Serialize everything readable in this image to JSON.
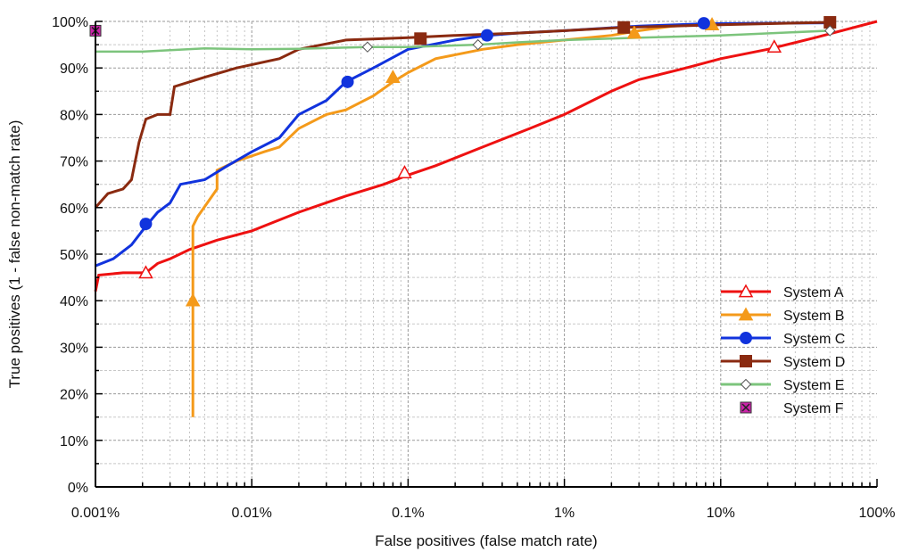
{
  "chart_data": {
    "type": "line",
    "title": "",
    "xlabel": "False positives (false match rate)",
    "ylabel": "True positives (1 - false non-match rate)",
    "xscale": "log",
    "xlim": [
      0.001,
      100
    ],
    "ylim": [
      0,
      100
    ],
    "grid": true,
    "legend_position": "bottom-right",
    "x_ticks": [
      {
        "value": 0.001,
        "label": "0.001%"
      },
      {
        "value": 0.01,
        "label": "0.01%"
      },
      {
        "value": 0.1,
        "label": "0.1%"
      },
      {
        "value": 1,
        "label": "1%"
      },
      {
        "value": 10,
        "label": "10%"
      },
      {
        "value": 100,
        "label": "100%"
      }
    ],
    "y_ticks": [
      {
        "value": 0,
        "label": "0%"
      },
      {
        "value": 10,
        "label": "10%"
      },
      {
        "value": 20,
        "label": "20%"
      },
      {
        "value": 30,
        "label": "30%"
      },
      {
        "value": 40,
        "label": "40%"
      },
      {
        "value": 50,
        "label": "50%"
      },
      {
        "value": 60,
        "label": "60%"
      },
      {
        "value": 70,
        "label": "70%"
      },
      {
        "value": 80,
        "label": "80%"
      },
      {
        "value": 90,
        "label": "90%"
      },
      {
        "value": 100,
        "label": "100%"
      }
    ],
    "series": [
      {
        "name": "System A",
        "color": "#ee1111",
        "marker": "triangle-open",
        "points": [
          [
            0.001,
            42
          ],
          [
            0.00105,
            45.5
          ],
          [
            0.0015,
            46
          ],
          [
            0.0021,
            46
          ],
          [
            0.0025,
            48
          ],
          [
            0.003,
            49
          ],
          [
            0.004,
            51
          ],
          [
            0.006,
            53
          ],
          [
            0.01,
            55
          ],
          [
            0.02,
            59
          ],
          [
            0.04,
            62.5
          ],
          [
            0.07,
            65
          ],
          [
            0.1,
            67
          ],
          [
            0.15,
            69
          ],
          [
            0.3,
            73
          ],
          [
            0.6,
            77
          ],
          [
            1,
            80
          ],
          [
            2,
            85
          ],
          [
            3,
            87.5
          ],
          [
            6,
            90
          ],
          [
            10,
            92
          ],
          [
            20,
            94
          ],
          [
            40,
            96.5
          ],
          [
            100,
            100
          ]
        ],
        "markers": [
          [
            0.0021,
            46
          ],
          [
            0.095,
            67.5
          ],
          [
            22,
            94.5
          ]
        ]
      },
      {
        "name": "System B",
        "color": "#f49a1a",
        "marker": "triangle-filled",
        "points": [
          [
            0.0042,
            15
          ],
          [
            0.0042,
            56
          ],
          [
            0.0045,
            58
          ],
          [
            0.006,
            64
          ],
          [
            0.006,
            68
          ],
          [
            0.008,
            70
          ],
          [
            0.012,
            72
          ],
          [
            0.015,
            73
          ],
          [
            0.02,
            77
          ],
          [
            0.03,
            80
          ],
          [
            0.04,
            81
          ],
          [
            0.06,
            84
          ],
          [
            0.08,
            87
          ],
          [
            0.1,
            89
          ],
          [
            0.15,
            92
          ],
          [
            0.3,
            94
          ],
          [
            0.5,
            95
          ],
          [
            1,
            96
          ],
          [
            2,
            97
          ],
          [
            3,
            98
          ],
          [
            5,
            99
          ],
          [
            9,
            99.5
          ]
        ],
        "markers": [
          [
            0.0042,
            40
          ],
          [
            0.08,
            88
          ],
          [
            2.8,
            97.5
          ],
          [
            8.8,
            99.3
          ]
        ]
      },
      {
        "name": "System C",
        "color": "#1133dd",
        "marker": "circle",
        "points": [
          [
            0.001,
            47.5
          ],
          [
            0.0013,
            49
          ],
          [
            0.0017,
            52
          ],
          [
            0.0021,
            56
          ],
          [
            0.0025,
            59
          ],
          [
            0.003,
            61
          ],
          [
            0.0035,
            65
          ],
          [
            0.005,
            66
          ],
          [
            0.007,
            69
          ],
          [
            0.01,
            72
          ],
          [
            0.015,
            75
          ],
          [
            0.02,
            80
          ],
          [
            0.03,
            83
          ],
          [
            0.04,
            87
          ],
          [
            0.06,
            90
          ],
          [
            0.1,
            94
          ],
          [
            0.2,
            96
          ],
          [
            0.32,
            97
          ],
          [
            0.5,
            97.5
          ],
          [
            1,
            98
          ],
          [
            3,
            99
          ],
          [
            8,
            99.5
          ],
          [
            50,
            99.7
          ]
        ],
        "markers": [
          [
            0.0021,
            56.5
          ],
          [
            0.041,
            87
          ],
          [
            0.32,
            97
          ],
          [
            7.8,
            99.6
          ]
        ]
      },
      {
        "name": "System D",
        "color": "#8a2a10",
        "marker": "square",
        "points": [
          [
            0.001,
            60
          ],
          [
            0.0012,
            63
          ],
          [
            0.0015,
            64
          ],
          [
            0.0017,
            66
          ],
          [
            0.0019,
            74
          ],
          [
            0.0021,
            79
          ],
          [
            0.0025,
            80
          ],
          [
            0.003,
            80
          ],
          [
            0.0032,
            86
          ],
          [
            0.005,
            88
          ],
          [
            0.008,
            90
          ],
          [
            0.015,
            92
          ],
          [
            0.02,
            94
          ],
          [
            0.04,
            96
          ],
          [
            0.1,
            96.5
          ],
          [
            0.2,
            97
          ],
          [
            0.5,
            97.5
          ],
          [
            1,
            98
          ],
          [
            2.4,
            98.7
          ],
          [
            10,
            99.3
          ],
          [
            50,
            99.8
          ]
        ],
        "markers": [
          [
            0.12,
            96.3
          ],
          [
            2.4,
            98.7
          ],
          [
            50,
            99.8
          ]
        ]
      },
      {
        "name": "System E",
        "color": "#7cc47c",
        "marker": "diamond-open",
        "points": [
          [
            0.001,
            93.5
          ],
          [
            0.002,
            93.5
          ],
          [
            0.005,
            94.2
          ],
          [
            0.01,
            94
          ],
          [
            0.02,
            94.1
          ],
          [
            0.055,
            94.5
          ],
          [
            0.1,
            94.5
          ],
          [
            0.28,
            95
          ],
          [
            0.5,
            95.5
          ],
          [
            1,
            96
          ],
          [
            3,
            96.5
          ],
          [
            10,
            97
          ],
          [
            50,
            98
          ]
        ],
        "markers": [
          [
            0.055,
            94.5
          ],
          [
            0.28,
            95
          ],
          [
            50,
            98
          ]
        ]
      },
      {
        "name": "System F",
        "color": "#cc22aa",
        "marker": "square-x",
        "points": [],
        "markers": [
          [
            0.001,
            98
          ]
        ]
      }
    ]
  }
}
